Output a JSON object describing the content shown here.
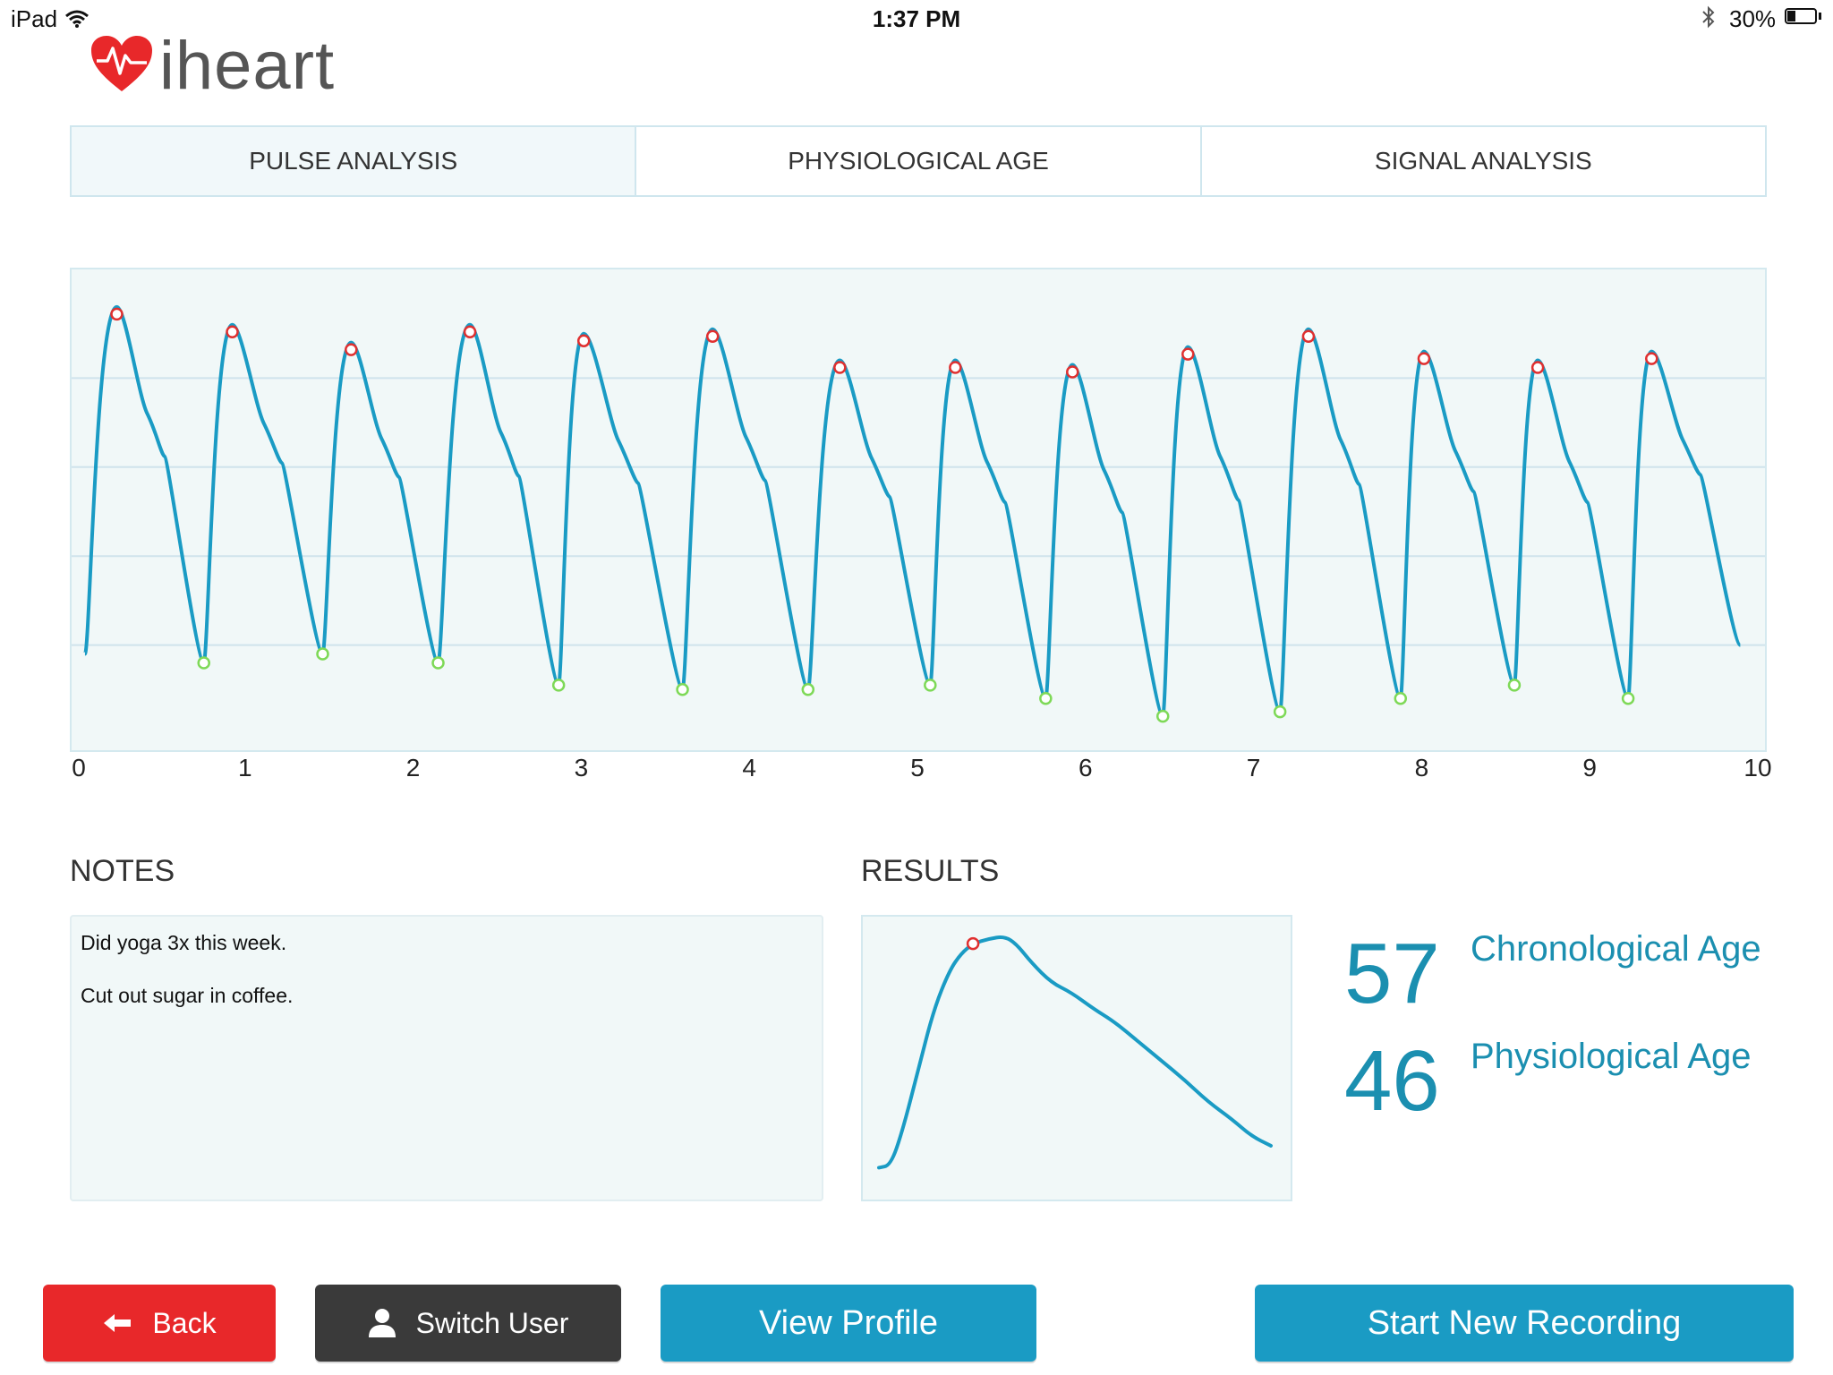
{
  "status_bar": {
    "device": "iPad",
    "time": "1:37 PM",
    "battery": "30%",
    "battery_level": 0.3,
    "icons": [
      "wifi-icon",
      "bluetooth-icon",
      "battery-icon"
    ]
  },
  "app": {
    "name": "iheart",
    "logo_icon": "heart-pulse-icon"
  },
  "tabs": [
    {
      "label": "PULSE ANALYSIS",
      "active": true
    },
    {
      "label": "PHYSIOLOGICAL AGE",
      "active": false
    },
    {
      "label": "SIGNAL ANALYSIS",
      "active": false
    }
  ],
  "chart_data": [
    {
      "type": "line",
      "x_ticks": [
        "0",
        "1",
        "2",
        "3",
        "4",
        "5",
        "6",
        "7",
        "8",
        "9",
        "10"
      ],
      "xlim": [
        0,
        10
      ],
      "ylim": [
        0,
        1
      ],
      "grid": true,
      "line_color": "#1a9bc4",
      "peaks_color": "#e03030",
      "troughs_color": "#7ed957",
      "peaks": [
        {
          "x": 0.27,
          "y": 0.96
        },
        {
          "x": 0.96,
          "y": 0.92
        },
        {
          "x": 1.67,
          "y": 0.88
        },
        {
          "x": 2.38,
          "y": 0.92
        },
        {
          "x": 3.06,
          "y": 0.9
        },
        {
          "x": 3.83,
          "y": 0.91
        },
        {
          "x": 4.59,
          "y": 0.84
        },
        {
          "x": 5.28,
          "y": 0.84
        },
        {
          "x": 5.98,
          "y": 0.83
        },
        {
          "x": 6.67,
          "y": 0.87
        },
        {
          "x": 7.39,
          "y": 0.91
        },
        {
          "x": 8.08,
          "y": 0.86
        },
        {
          "x": 8.76,
          "y": 0.84
        },
        {
          "x": 9.44,
          "y": 0.86
        }
      ],
      "troughs": [
        {
          "x": 0.79,
          "y": 0.16
        },
        {
          "x": 1.5,
          "y": 0.18
        },
        {
          "x": 2.19,
          "y": 0.16
        },
        {
          "x": 2.91,
          "y": 0.11
        },
        {
          "x": 3.65,
          "y": 0.1
        },
        {
          "x": 4.4,
          "y": 0.1
        },
        {
          "x": 5.13,
          "y": 0.11
        },
        {
          "x": 5.82,
          "y": 0.08
        },
        {
          "x": 6.52,
          "y": 0.04
        },
        {
          "x": 7.22,
          "y": 0.05
        },
        {
          "x": 7.94,
          "y": 0.08
        },
        {
          "x": 8.62,
          "y": 0.11
        },
        {
          "x": 9.3,
          "y": 0.08
        }
      ],
      "start": {
        "x": 0.08,
        "y": 0.18
      },
      "end": {
        "x": 9.97,
        "y": 0.2
      }
    },
    {
      "type": "line",
      "title": "",
      "line_color": "#1a9bc4",
      "marker_color": "#e03030",
      "points": [
        [
          0.0,
          0.05
        ],
        [
          0.03,
          0.06
        ],
        [
          0.06,
          0.2
        ],
        [
          0.1,
          0.45
        ],
        [
          0.14,
          0.7
        ],
        [
          0.18,
          0.86
        ],
        [
          0.21,
          0.93
        ],
        [
          0.24,
          0.97
        ],
        [
          0.28,
          0.99
        ],
        [
          0.32,
          1.0
        ],
        [
          0.35,
          0.97
        ],
        [
          0.39,
          0.89
        ],
        [
          0.44,
          0.81
        ],
        [
          0.49,
          0.77
        ],
        [
          0.55,
          0.7
        ],
        [
          0.6,
          0.65
        ],
        [
          0.66,
          0.57
        ],
        [
          0.72,
          0.49
        ],
        [
          0.78,
          0.41
        ],
        [
          0.84,
          0.32
        ],
        [
          0.9,
          0.25
        ],
        [
          0.95,
          0.18
        ],
        [
          1.0,
          0.14
        ]
      ],
      "marker": {
        "x": 0.24,
        "y": 0.97
      }
    }
  ],
  "notes": {
    "title": "NOTES",
    "lines": [
      "Did yoga 3x this week.",
      "Cut out sugar in coffee."
    ]
  },
  "results": {
    "title": "RESULTS",
    "chronological_age": "57",
    "chronological_label": "Chronological Age",
    "physiological_age": "46",
    "physiological_label": "Physiological Age"
  },
  "buttons": {
    "back": "Back",
    "back_icon": "arrow-left-icon",
    "switch_user": "Switch User",
    "switch_user_icon": "user-icon",
    "view_profile": "View Profile",
    "start_recording": "Start New Recording"
  }
}
